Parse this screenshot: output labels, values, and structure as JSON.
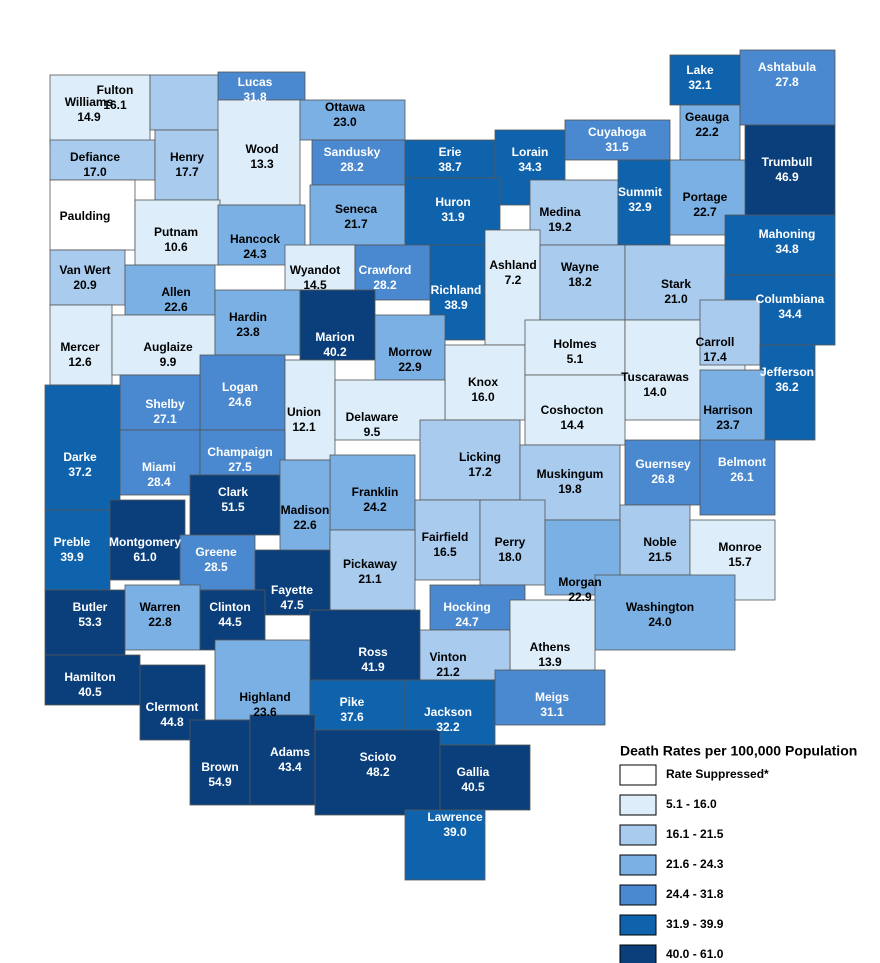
{
  "legend_title": "Death Rates per 100,000 Population",
  "legend": [
    {
      "label": "Rate Suppressed*",
      "color": "#ffffff"
    },
    {
      "label": "5.1 - 16.0",
      "range": [
        5.1,
        16.0
      ],
      "color": "#ddeefa"
    },
    {
      "label": "16.1 - 21.5",
      "range": [
        16.1,
        21.5
      ],
      "color": "#a8cbee"
    },
    {
      "label": "21.6 - 24.3",
      "range": [
        21.6,
        24.3
      ],
      "color": "#7ab0e3"
    },
    {
      "label": "24.4 - 31.8",
      "range": [
        24.4,
        31.8
      ],
      "color": "#4a89cf"
    },
    {
      "label": "31.9 - 39.9",
      "range": [
        31.9,
        39.9
      ],
      "color": "#0f63ad"
    },
    {
      "label": "40.0 - 61.0",
      "range": [
        40.0,
        61.0
      ],
      "color": "#0a3f7c"
    }
  ],
  "counties": [
    {
      "name": "Williams",
      "value": 14.9
    },
    {
      "name": "Fulton",
      "value": 16.1
    },
    {
      "name": "Lucas",
      "value": 31.8
    },
    {
      "name": "Wood",
      "value": 13.3
    },
    {
      "name": "Ottawa",
      "value": 23.0,
      "value_label": "23.0"
    },
    {
      "name": "Sandusky",
      "value": 28.2
    },
    {
      "name": "Erie",
      "value": 38.7
    },
    {
      "name": "Lorain",
      "value": 34.3
    },
    {
      "name": "Cuyahoga",
      "value": 31.5
    },
    {
      "name": "Lake",
      "value": 32.1
    },
    {
      "name": "Geauga",
      "value": 22.2
    },
    {
      "name": "Ashtabula",
      "value": 27.8
    },
    {
      "name": "Trumbull",
      "value": 46.9
    },
    {
      "name": "Defiance",
      "value": 17.0,
      "value_label": "17.0"
    },
    {
      "name": "Henry",
      "value": 17.7
    },
    {
      "name": "Paulding",
      "value": null
    },
    {
      "name": "Putnam",
      "value": 10.6
    },
    {
      "name": "Hancock",
      "value": 24.3
    },
    {
      "name": "Seneca",
      "value": 21.7
    },
    {
      "name": "Huron",
      "value": 31.9
    },
    {
      "name": "Medina",
      "value": 19.2
    },
    {
      "name": "Summit",
      "value": 32.9
    },
    {
      "name": "Portage",
      "value": 22.7
    },
    {
      "name": "Mahoning",
      "value": 34.8
    },
    {
      "name": "Van Wert",
      "value": 20.9
    },
    {
      "name": "Allen",
      "value": 22.6
    },
    {
      "name": "Wyandot",
      "value": 14.5
    },
    {
      "name": "Crawford",
      "value": 28.2
    },
    {
      "name": "Richland",
      "value": 38.9
    },
    {
      "name": "Ashland",
      "value": 7.2
    },
    {
      "name": "Wayne",
      "value": 18.2
    },
    {
      "name": "Stark",
      "value": 21.0,
      "value_label": "21.0"
    },
    {
      "name": "Columbiana",
      "value": 34.4
    },
    {
      "name": "Mercer",
      "value": 12.6
    },
    {
      "name": "Auglaize",
      "value": 9.9
    },
    {
      "name": "Hardin",
      "value": 23.8
    },
    {
      "name": "Marion",
      "value": 40.2
    },
    {
      "name": "Morrow",
      "value": 22.9
    },
    {
      "name": "Knox",
      "value": 16.0,
      "value_label": "16.0"
    },
    {
      "name": "Holmes",
      "value": 5.1
    },
    {
      "name": "Tuscarawas",
      "value": 14.0,
      "value_label": "14.0"
    },
    {
      "name": "Carroll",
      "value": 17.4
    },
    {
      "name": "Jefferson",
      "value": 36.2
    },
    {
      "name": "Coshocton",
      "value": 14.4
    },
    {
      "name": "Harrison",
      "value": 23.7
    },
    {
      "name": "Logan",
      "value": 24.6
    },
    {
      "name": "Shelby",
      "value": 27.1
    },
    {
      "name": "Union",
      "value": 12.1
    },
    {
      "name": "Delaware",
      "value": 9.5
    },
    {
      "name": "Darke",
      "value": 37.2
    },
    {
      "name": "Miami",
      "value": 28.4
    },
    {
      "name": "Champaign",
      "value": 27.5
    },
    {
      "name": "Licking",
      "value": 17.2
    },
    {
      "name": "Guernsey",
      "value": 26.8
    },
    {
      "name": "Belmont",
      "value": 26.1
    },
    {
      "name": "Muskingum",
      "value": 19.8
    },
    {
      "name": "Clark",
      "value": 51.5
    },
    {
      "name": "Franklin",
      "value": 24.2
    },
    {
      "name": "Madison",
      "value": 22.6
    },
    {
      "name": "Preble",
      "value": 39.9
    },
    {
      "name": "Montgomery",
      "value": 61.0,
      "value_label": "61.0"
    },
    {
      "name": "Greene",
      "value": 28.5
    },
    {
      "name": "Fairfield",
      "value": 16.5
    },
    {
      "name": "Perry",
      "value": 18.0,
      "value_label": "18.0"
    },
    {
      "name": "Noble",
      "value": 21.5
    },
    {
      "name": "Monroe",
      "value": 15.7
    },
    {
      "name": "Morgan",
      "value": 22.9
    },
    {
      "name": "Pickaway",
      "value": 21.1
    },
    {
      "name": "Fayette",
      "value": 47.5
    },
    {
      "name": "Butler",
      "value": 53.3
    },
    {
      "name": "Warren",
      "value": 22.8
    },
    {
      "name": "Clinton",
      "value": 44.5
    },
    {
      "name": "Hocking",
      "value": 24.7
    },
    {
      "name": "Washington",
      "value": 24.0,
      "value_label": "24.0"
    },
    {
      "name": "Ross",
      "value": 41.9
    },
    {
      "name": "Athens",
      "value": 13.9
    },
    {
      "name": "Vinton",
      "value": 21.2
    },
    {
      "name": "Highland",
      "value": 23.6
    },
    {
      "name": "Hamilton",
      "value": 40.5
    },
    {
      "name": "Clermont",
      "value": 44.8
    },
    {
      "name": "Pike",
      "value": 37.6
    },
    {
      "name": "Jackson",
      "value": 32.2
    },
    {
      "name": "Meigs",
      "value": 31.1
    },
    {
      "name": "Brown",
      "value": 54.9
    },
    {
      "name": "Adams",
      "value": 43.4
    },
    {
      "name": "Scioto",
      "value": 48.2
    },
    {
      "name": "Gallia",
      "value": 40.5
    },
    {
      "name": "Lawrence",
      "value": 39.0,
      "value_label": "39.0"
    }
  ]
}
